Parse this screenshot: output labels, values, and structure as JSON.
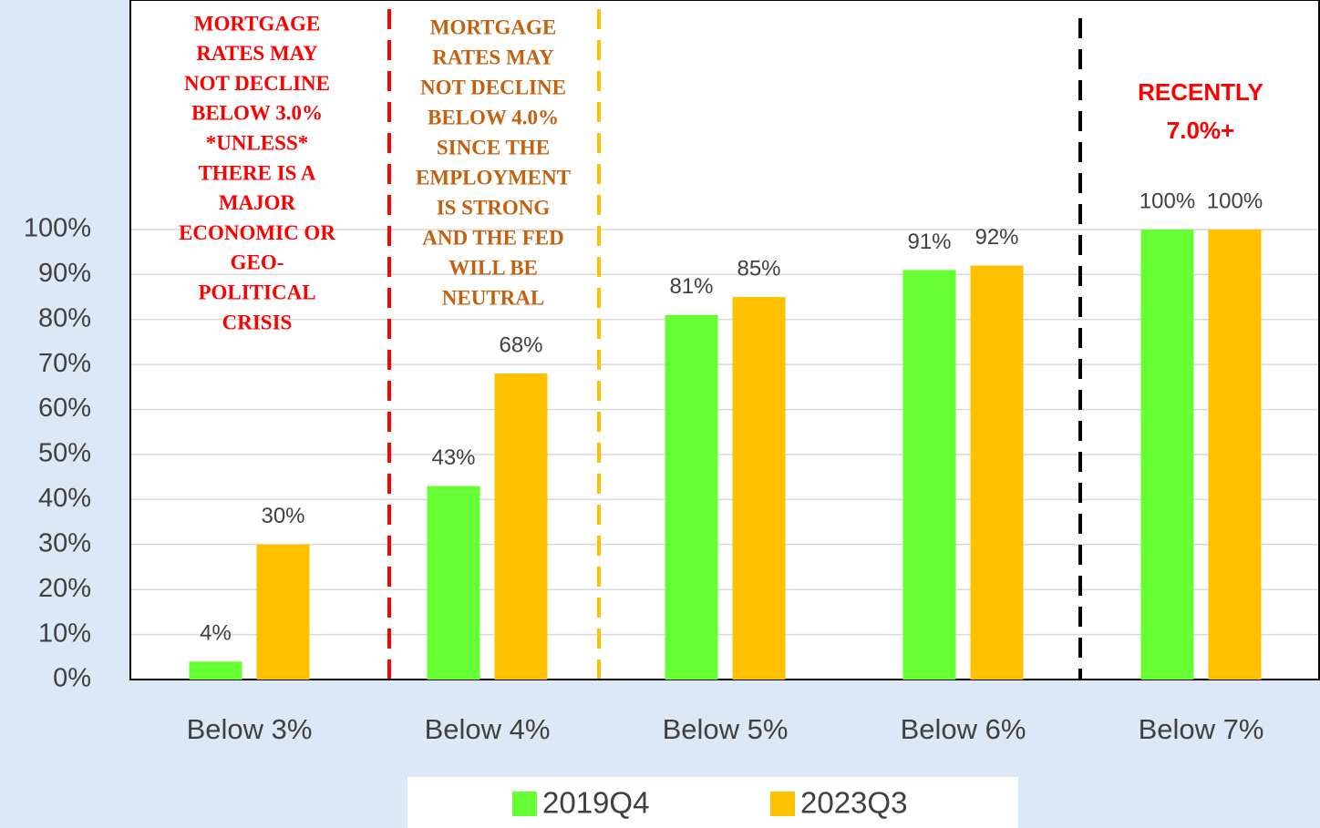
{
  "chart_data": {
    "type": "bar",
    "categories": [
      "Below 3%",
      "Below 4%",
      "Below 5%",
      "Below 6%",
      "Below 7%"
    ],
    "series": [
      {
        "name": "2019Q4",
        "color": "#66ff33",
        "values": [
          4,
          43,
          81,
          91,
          100
        ],
        "value_labels": [
          "4%",
          "43%",
          "81%",
          "91%",
          "100%"
        ]
      },
      {
        "name": "2023Q3",
        "color": "#ffc000",
        "values": [
          30,
          68,
          85,
          92,
          100
        ],
        "value_labels": [
          "30%",
          "68%",
          "85%",
          "92%",
          "100%"
        ]
      }
    ],
    "ylim": [
      0,
      151
    ],
    "yticks": [
      {
        "value": 0,
        "label": "0%"
      },
      {
        "value": 10,
        "label": "10%"
      },
      {
        "value": 20,
        "label": "20%"
      },
      {
        "value": 30,
        "label": "30%"
      },
      {
        "value": 40,
        "label": "40%"
      },
      {
        "value": 50,
        "label": "50%"
      },
      {
        "value": 60,
        "label": "60%"
      },
      {
        "value": 70,
        "label": "70%"
      },
      {
        "value": 80,
        "label": "80%"
      },
      {
        "value": 90,
        "label": "90%"
      },
      {
        "value": 100,
        "label": "100%"
      }
    ],
    "grid": true,
    "annotations": [
      [
        "MORTGAGE",
        "RATES  MAY",
        "NOT DECLINE",
        "BELOW  3.0%",
        "*UNLESS*",
        "THERE IS A",
        "MAJOR",
        "ECONOMIC OR",
        "GEO-",
        "POLITICAL",
        "CRISIS"
      ],
      [
        "MORTGAGE",
        "RATES  MAY",
        "NOT DECLINE",
        "BELOW  4.0%",
        "SINCE THE",
        "EMPLOYMENT",
        "IS STRONG",
        "AND THE FED",
        "WILL BE",
        "NEUTRAL"
      ],
      [
        "RECENTLY",
        "7.0%+"
      ]
    ]
  }
}
